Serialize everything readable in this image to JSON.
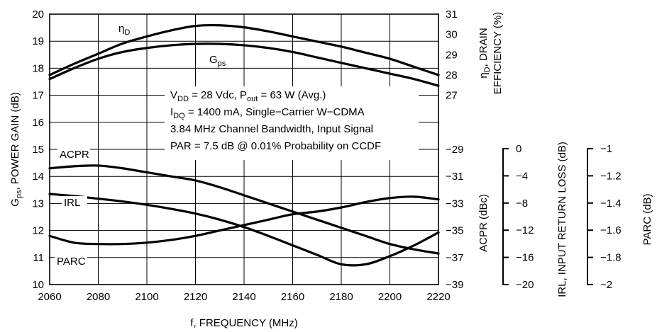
{
  "chart_data": {
    "type": "line",
    "x": [
      2060,
      2080,
      2100,
      2120,
      2140,
      2160,
      2180,
      2200,
      2220
    ],
    "xlim": [
      2060,
      2220
    ],
    "xticks": [
      "2060",
      "2080",
      "2100",
      "2120",
      "2140",
      "2160",
      "2180",
      "2200",
      "2220"
    ],
    "xlabel": "f, FREQUENCY (MHz)",
    "grid": true,
    "left_axis": {
      "label_main": "G",
      "label_sub": "ps",
      "label_rest": ", POWER GAIN (dB)",
      "ylim": [
        10,
        20
      ],
      "ticks": [
        "10",
        "11",
        "12",
        "13",
        "14",
        "15",
        "16",
        "17",
        "18",
        "19",
        "20"
      ]
    },
    "right_axis_eff": {
      "label_line1_main": "η",
      "label_line1_sub": "D",
      "label_line1_rest": ", DRAIN",
      "label_line2": "EFFICIENCY (%)",
      "ylim": [
        27,
        31
      ],
      "ticks": [
        "27",
        "28",
        "29",
        "30",
        "31"
      ]
    },
    "right_axis_acpr": {
      "label": "ACPR (dBc)",
      "ylim": [
        -39,
        -29
      ],
      "ticks": [
        "−29",
        "−31",
        "−33",
        "−35",
        "−37",
        "−39"
      ]
    },
    "irl_axis": {
      "label": "IRL, INPUT RETURN LOSS (dB)",
      "ylim": [
        -20,
        0
      ],
      "ticks": [
        "0",
        "−4",
        "−8",
        "−12",
        "−16",
        "−20"
      ]
    },
    "parc_axis": {
      "label": "PARC (dB)",
      "ylim": [
        -2,
        -1
      ],
      "ticks": [
        "−1",
        "−1.2",
        "−1.4",
        "−1.6",
        "−1.8",
        "−2"
      ]
    },
    "series": [
      {
        "name": "ηD",
        "label_main": "η",
        "label_sub": "D",
        "axis": "right_axis_eff",
        "x": [
          2060,
          2070,
          2080,
          2090,
          2100,
          2110,
          2120,
          2130,
          2140,
          2150,
          2160,
          2170,
          2180,
          2190,
          2200,
          2210,
          2220
        ],
        "values": [
          28.0,
          28.55,
          29.05,
          29.55,
          29.9,
          30.2,
          30.42,
          30.45,
          30.35,
          30.15,
          29.9,
          29.65,
          29.4,
          29.1,
          28.8,
          28.4,
          28.0
        ]
      },
      {
        "name": "Gps",
        "label_main": "G",
        "label_sub": "ps",
        "axis": "left_axis",
        "x": [
          2060,
          2070,
          2080,
          2090,
          2100,
          2110,
          2120,
          2130,
          2140,
          2150,
          2160,
          2170,
          2180,
          2190,
          2200,
          2210,
          2220
        ],
        "values": [
          17.6,
          18.0,
          18.35,
          18.6,
          18.75,
          18.85,
          18.9,
          18.9,
          18.85,
          18.75,
          18.6,
          18.4,
          18.2,
          18.0,
          17.8,
          17.6,
          17.35
        ]
      },
      {
        "name": "ACPR",
        "axis": "right_axis_acpr",
        "x": [
          2060,
          2070,
          2080,
          2090,
          2100,
          2110,
          2120,
          2130,
          2140,
          2150,
          2160,
          2170,
          2180,
          2190,
          2200,
          2210,
          2220
        ],
        "values": [
          -30.4,
          -30.25,
          -30.2,
          -30.4,
          -30.7,
          -31.0,
          -31.3,
          -31.8,
          -32.4,
          -33.0,
          -33.6,
          -34.2,
          -34.8,
          -35.4,
          -36.0,
          -36.4,
          -36.7
        ]
      },
      {
        "name": "IRL",
        "axis": "irl_axis",
        "x": [
          2060,
          2070,
          2080,
          2090,
          2100,
          2110,
          2120,
          2130,
          2140,
          2150,
          2160,
          2170,
          2180,
          2190,
          2200,
          2210,
          2220
        ],
        "values": [
          -6.6,
          -6.9,
          -7.3,
          -7.7,
          -8.2,
          -8.8,
          -9.5,
          -10.4,
          -11.5,
          -12.8,
          -14.2,
          -15.6,
          -17.0,
          -17.0,
          -15.8,
          -14.2,
          -12.3
        ]
      },
      {
        "name": "PARC",
        "axis": "parc_axis",
        "x": [
          2060,
          2070,
          2080,
          2090,
          2100,
          2110,
          2120,
          2130,
          2140,
          2150,
          2160,
          2170,
          2180,
          2190,
          2200,
          2210,
          2220
        ],
        "values": [
          -1.64,
          -1.69,
          -1.7,
          -1.7,
          -1.69,
          -1.67,
          -1.64,
          -1.6,
          -1.56,
          -1.52,
          -1.48,
          -1.46,
          -1.43,
          -1.39,
          -1.36,
          -1.35,
          -1.37
        ]
      }
    ],
    "annotation_lines": [
      {
        "main": "V",
        "sub": "DD",
        "rest": " = 28 Vdc, P",
        "sub2": "out",
        "rest2": " = 63 W (Avg.)"
      },
      {
        "main": "I",
        "sub": "DQ",
        "rest": " = 1400 mA, Single−Carrier W−CDMA",
        "sub2": "",
        "rest2": ""
      },
      {
        "main": "3.84 MHz Channel Bandwidth, Input Signal",
        "sub": "",
        "rest": "",
        "sub2": "",
        "rest2": ""
      },
      {
        "main": "PAR = 7.5 dB @ 0.01% Probability on CCDF",
        "sub": "",
        "rest": "",
        "sub2": "",
        "rest2": ""
      }
    ]
  }
}
